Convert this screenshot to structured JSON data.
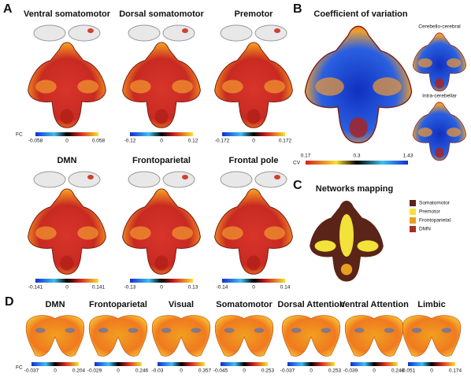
{
  "panel_a": {
    "letter": "A",
    "fc_label": "FC",
    "maps": [
      {
        "title": "Ventral somatomotor",
        "scale": [
          -0.058,
          0,
          0.058
        ]
      },
      {
        "title": "Dorsal somatomotor",
        "scale": [
          -0.12,
          0,
          0.12
        ]
      },
      {
        "title": "Premotor",
        "scale": [
          -0.172,
          0,
          0.172
        ]
      },
      {
        "title": "DMN",
        "scale": [
          -0.141,
          0,
          0.141
        ]
      },
      {
        "title": "Frontoparietal",
        "scale": [
          -0.13,
          0,
          0.13
        ]
      },
      {
        "title": "Frontal pole",
        "scale": [
          -0.14,
          0,
          0.14
        ]
      }
    ]
  },
  "panel_b": {
    "letter": "B",
    "title": "Coefficient of variation",
    "insets": [
      "Cerebello-cerebral",
      "Intra-cerebellar"
    ],
    "cv_label": "CV",
    "scale": [
      0.17,
      0.3,
      1.43
    ]
  },
  "panel_c": {
    "letter": "C",
    "title": "Networks mapping",
    "legend": [
      {
        "name": "Somatomotor",
        "color": "#5a2418"
      },
      {
        "name": "Premotor",
        "color": "#f2e23a"
      },
      {
        "name": "Frontoparietal",
        "color": "#e8a020"
      },
      {
        "name": "DMN",
        "color": "#a83020"
      }
    ]
  },
  "panel_d": {
    "letter": "D",
    "fc_label": "FC",
    "maps": [
      {
        "title": "DMN",
        "scale": [
          -0.037,
          0,
          0.204
        ]
      },
      {
        "title": "Frontoparietal",
        "scale": [
          -0.029,
          0,
          0.246
        ]
      },
      {
        "title": "Visual",
        "scale": [
          -0.03,
          0,
          0.357
        ]
      },
      {
        "title": "Somatomotor",
        "scale": [
          -0.045,
          0,
          0.253
        ]
      },
      {
        "title": "Dorsal Attention",
        "scale": [
          -0.037,
          0,
          0.253
        ]
      },
      {
        "title": "Ventral Attention",
        "scale": [
          -0.039,
          0,
          0.248
        ]
      },
      {
        "title": "Limbic",
        "scale": [
          -0.051,
          0,
          0.174
        ]
      }
    ]
  }
}
